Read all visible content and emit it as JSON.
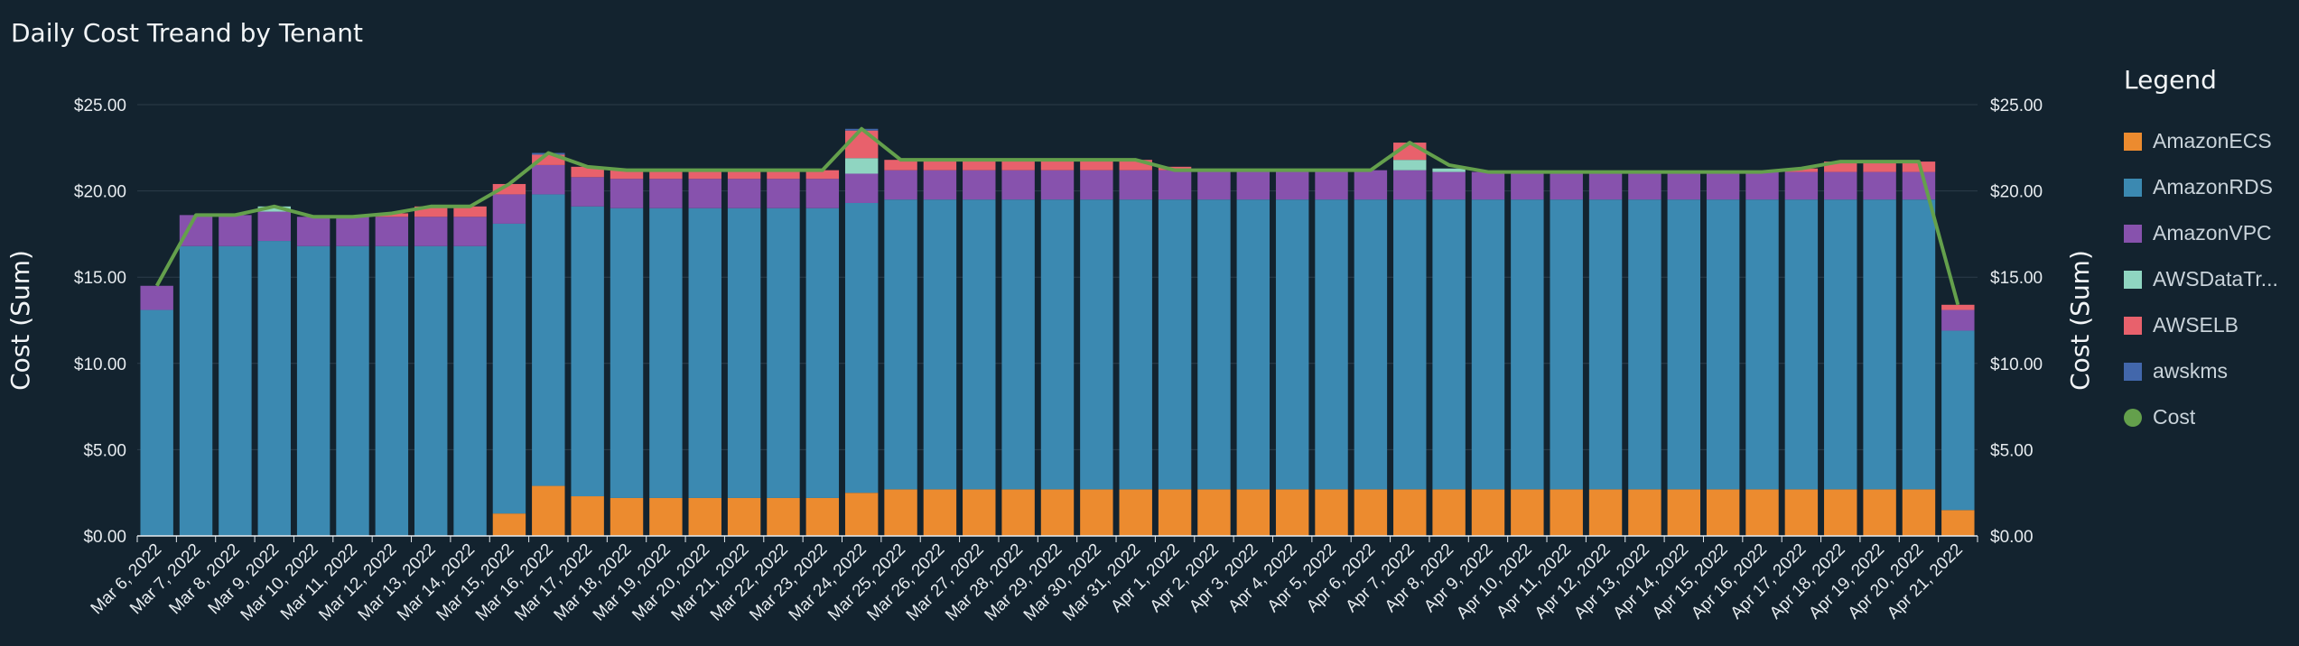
{
  "chart_data": {
    "type": "bar",
    "stacked": true,
    "title": "Daily Cost Treand by Tenant",
    "ylabel": "Cost (Sum)",
    "y2label": "Cost (Sum)",
    "ylim": [
      0,
      25
    ],
    "yticks": [
      "$0.00",
      "$5.00",
      "$10.00",
      "$15.00",
      "$20.00",
      "$25.00"
    ],
    "grid": true,
    "legend_title": "Legend",
    "legend_position": "right",
    "categories": [
      "Mar 6, 2022",
      "Mar 7, 2022",
      "Mar 8, 2022",
      "Mar 9, 2022",
      "Mar 10, 2022",
      "Mar 11, 2022",
      "Mar 12, 2022",
      "Mar 13, 2022",
      "Mar 14, 2022",
      "Mar 15, 2022",
      "Mar 16, 2022",
      "Mar 17, 2022",
      "Mar 18, 2022",
      "Mar 19, 2022",
      "Mar 20, 2022",
      "Mar 21, 2022",
      "Mar 22, 2022",
      "Mar 23, 2022",
      "Mar 24, 2022",
      "Mar 25, 2022",
      "Mar 26, 2022",
      "Mar 27, 2022",
      "Mar 28, 2022",
      "Mar 29, 2022",
      "Mar 30, 2022",
      "Mar 31, 2022",
      "Apr 1, 2022",
      "Apr 2, 2022",
      "Apr 3, 2022",
      "Apr 4, 2022",
      "Apr 5, 2022",
      "Apr 6, 2022",
      "Apr 7, 2022",
      "Apr 8, 2022",
      "Apr 9, 2022",
      "Apr 10, 2022",
      "Apr 11, 2022",
      "Apr 12, 2022",
      "Apr 13, 2022",
      "Apr 14, 2022",
      "Apr 15, 2022",
      "Apr 16, 2022",
      "Apr 17, 2022",
      "Apr 18, 2022",
      "Apr 19, 2022",
      "Apr 20, 2022",
      "Apr 21, 2022"
    ],
    "series": [
      {
        "name": "AmazonECS",
        "color": "#ec8b2f",
        "values": [
          0,
          0,
          0,
          0,
          0,
          0,
          0,
          0,
          0,
          1.3,
          2.9,
          2.3,
          2.2,
          2.2,
          2.2,
          2.2,
          2.2,
          2.2,
          2.5,
          2.7,
          2.7,
          2.7,
          2.7,
          2.7,
          2.7,
          2.7,
          2.7,
          2.7,
          2.7,
          2.7,
          2.7,
          2.7,
          2.7,
          2.7,
          2.7,
          2.7,
          2.7,
          2.7,
          2.7,
          2.7,
          2.7,
          2.7,
          2.7,
          2.7,
          2.7,
          2.7,
          1.5
        ]
      },
      {
        "name": "AmazonRDS",
        "color": "#3b89b1",
        "values": [
          13.1,
          16.8,
          16.8,
          17.1,
          16.8,
          16.8,
          16.8,
          16.8,
          16.8,
          16.8,
          16.9,
          16.8,
          16.8,
          16.8,
          16.8,
          16.8,
          16.8,
          16.8,
          16.8,
          16.8,
          16.8,
          16.8,
          16.8,
          16.8,
          16.8,
          16.8,
          16.8,
          16.8,
          16.8,
          16.8,
          16.8,
          16.8,
          16.8,
          16.8,
          16.8,
          16.8,
          16.8,
          16.8,
          16.8,
          16.8,
          16.8,
          16.8,
          16.8,
          16.8,
          16.8,
          16.8,
          10.4
        ]
      },
      {
        "name": "AmazonVPC",
        "color": "#8752ad",
        "values": [
          1.4,
          1.8,
          1.8,
          1.7,
          1.7,
          1.7,
          1.7,
          1.7,
          1.7,
          1.7,
          1.7,
          1.7,
          1.7,
          1.7,
          1.7,
          1.7,
          1.7,
          1.7,
          1.7,
          1.7,
          1.7,
          1.7,
          1.7,
          1.7,
          1.7,
          1.7,
          1.7,
          1.7,
          1.7,
          1.7,
          1.7,
          1.7,
          1.7,
          1.6,
          1.6,
          1.6,
          1.6,
          1.6,
          1.6,
          1.6,
          1.6,
          1.6,
          1.6,
          1.6,
          1.6,
          1.6,
          1.2
        ]
      },
      {
        "name": "AWSDataTr...",
        "color": "#8fd5c1",
        "values": [
          0,
          0,
          0,
          0.3,
          0,
          0,
          0,
          0,
          0,
          0,
          0,
          0,
          0,
          0,
          0,
          0,
          0,
          0,
          0.9,
          0,
          0,
          0,
          0,
          0,
          0,
          0,
          0,
          0,
          0,
          0,
          0,
          0,
          0.6,
          0.2,
          0,
          0,
          0,
          0,
          0,
          0,
          0,
          0,
          0,
          0,
          0,
          0,
          0
        ]
      },
      {
        "name": "AWSELB",
        "color": "#e8616c",
        "values": [
          0,
          0,
          0,
          0,
          0,
          0,
          0.2,
          0.6,
          0.6,
          0.6,
          0.6,
          0.6,
          0.5,
          0.5,
          0.5,
          0.5,
          0.5,
          0.5,
          1.6,
          0.6,
          0.6,
          0.6,
          0.6,
          0.6,
          0.6,
          0.6,
          0.2,
          0,
          0,
          0,
          0,
          0,
          1.0,
          0,
          0,
          0,
          0,
          0,
          0,
          0,
          0,
          0,
          0.2,
          0.6,
          0.6,
          0.6,
          0.3
        ]
      },
      {
        "name": "awskms",
        "color": "#4267ab",
        "values": [
          0,
          0,
          0,
          0,
          0,
          0,
          0,
          0,
          0,
          0,
          0.1,
          0,
          0,
          0,
          0,
          0,
          0,
          0,
          0.1,
          0,
          0,
          0,
          0,
          0,
          0,
          0,
          0,
          0,
          0,
          0,
          0,
          0,
          0,
          0,
          0,
          0,
          0,
          0,
          0,
          0,
          0,
          0,
          0,
          0,
          0,
          0,
          0
        ]
      }
    ],
    "line": {
      "name": "Cost",
      "color": "#64a04c",
      "values": [
        14.5,
        18.6,
        18.6,
        19.1,
        18.5,
        18.5,
        18.7,
        19.1,
        19.1,
        20.4,
        22.2,
        21.4,
        21.2,
        21.2,
        21.2,
        21.2,
        21.2,
        21.2,
        23.6,
        21.8,
        21.8,
        21.8,
        21.8,
        21.8,
        21.8,
        21.8,
        21.2,
        21.2,
        21.2,
        21.2,
        21.2,
        21.2,
        22.8,
        21.5,
        21.1,
        21.1,
        21.1,
        21.1,
        21.1,
        21.1,
        21.1,
        21.1,
        21.3,
        21.7,
        21.7,
        21.7,
        13.4
      ]
    }
  }
}
